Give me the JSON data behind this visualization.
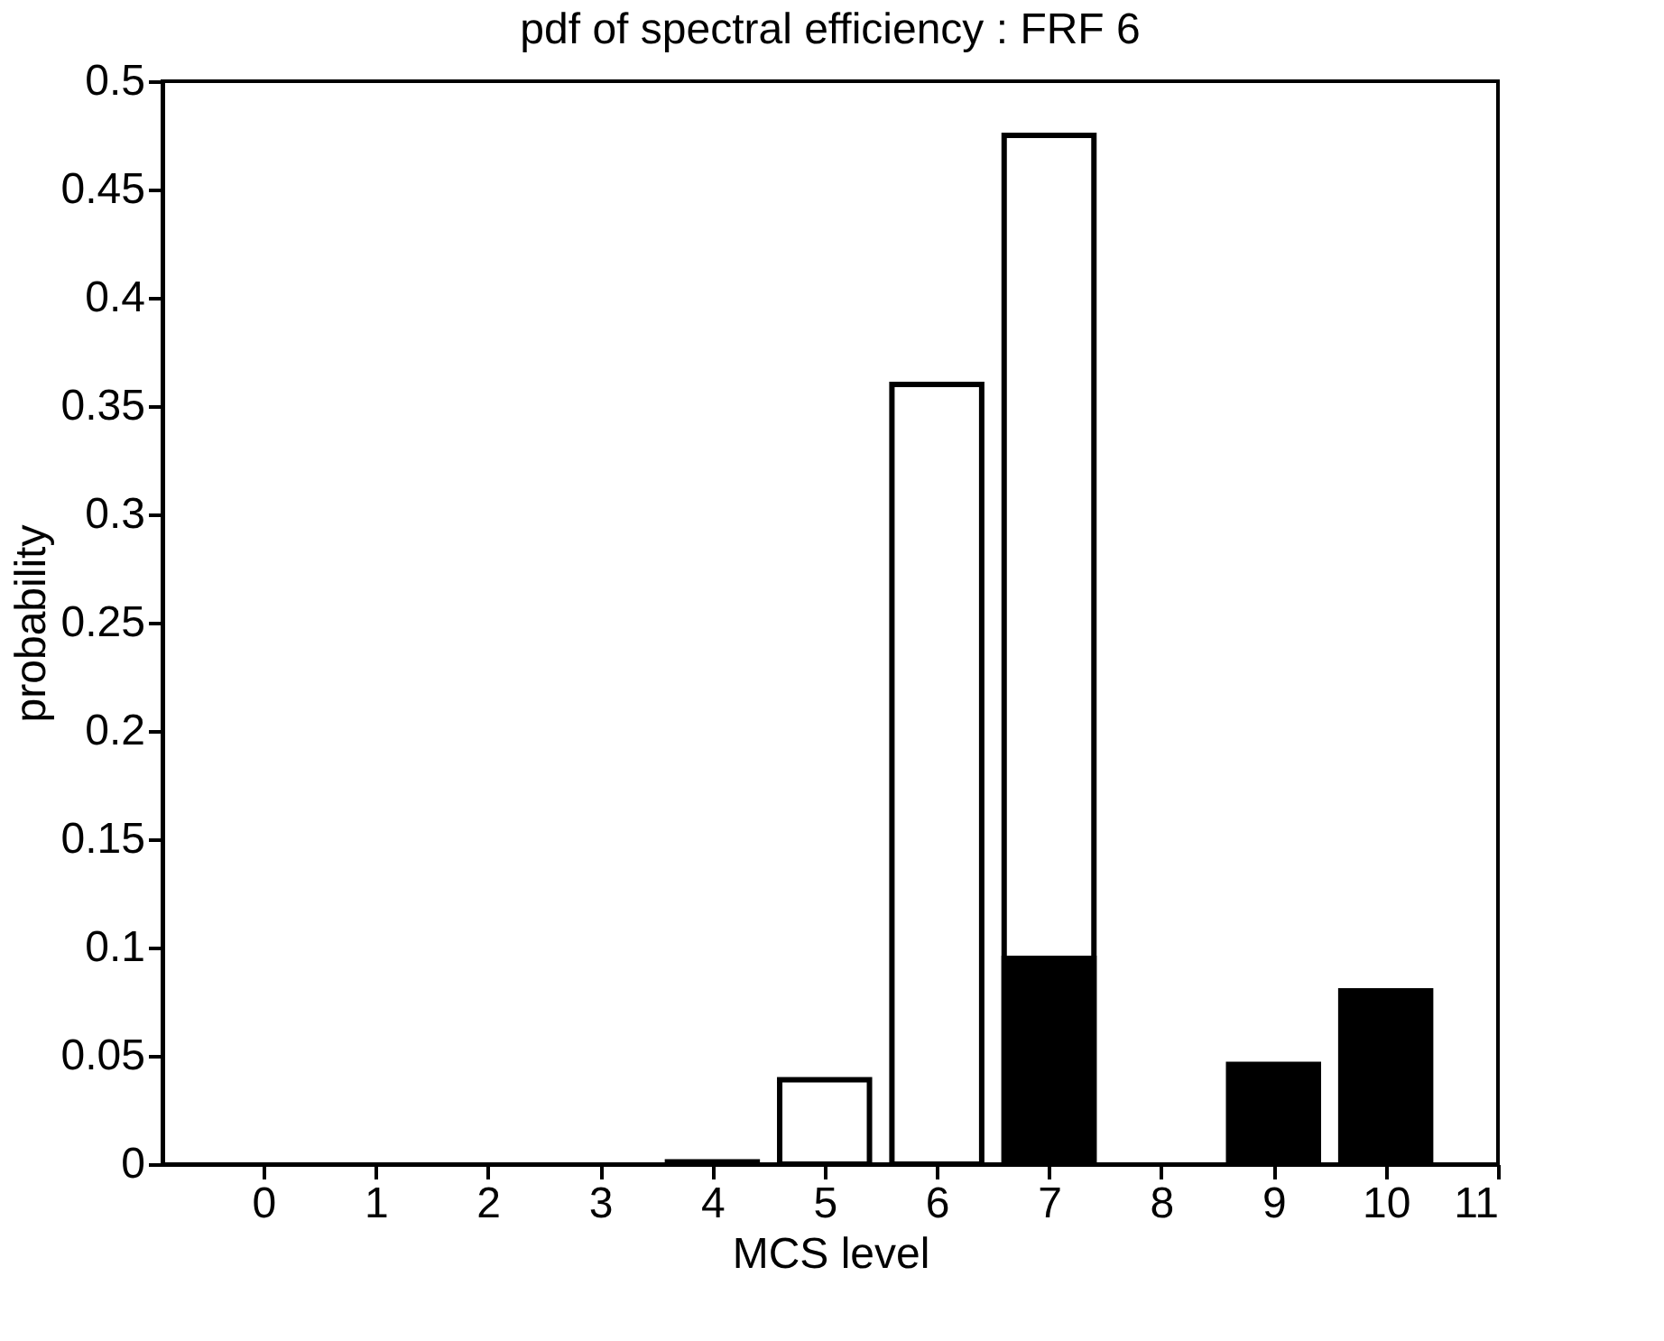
{
  "chart_data": {
    "type": "bar",
    "title": "pdf of spectral efficiency : FRF 6",
    "xlabel": "MCS level",
    "ylabel": "probability",
    "series": [
      {
        "color": "#ffffff",
        "x": [
          4,
          5,
          6,
          7
        ],
        "values": [
          0.001,
          0.039,
          0.36,
          0.475
        ]
      },
      {
        "color": "#000000",
        "x": [
          7,
          9,
          10
        ],
        "values": [
          0.095,
          0.046,
          0.08
        ]
      }
    ],
    "xlim": [
      -0.9,
      11
    ],
    "xticks": [
      0,
      1,
      2,
      3,
      4,
      5,
      6,
      7,
      8,
      9,
      10,
      11
    ],
    "ylim": [
      0,
      0.5
    ],
    "yticks": [
      0,
      0.05,
      0.1,
      0.15,
      0.2,
      0.25,
      0.3,
      0.35,
      0.4,
      0.45,
      0.5
    ],
    "grid": false
  }
}
